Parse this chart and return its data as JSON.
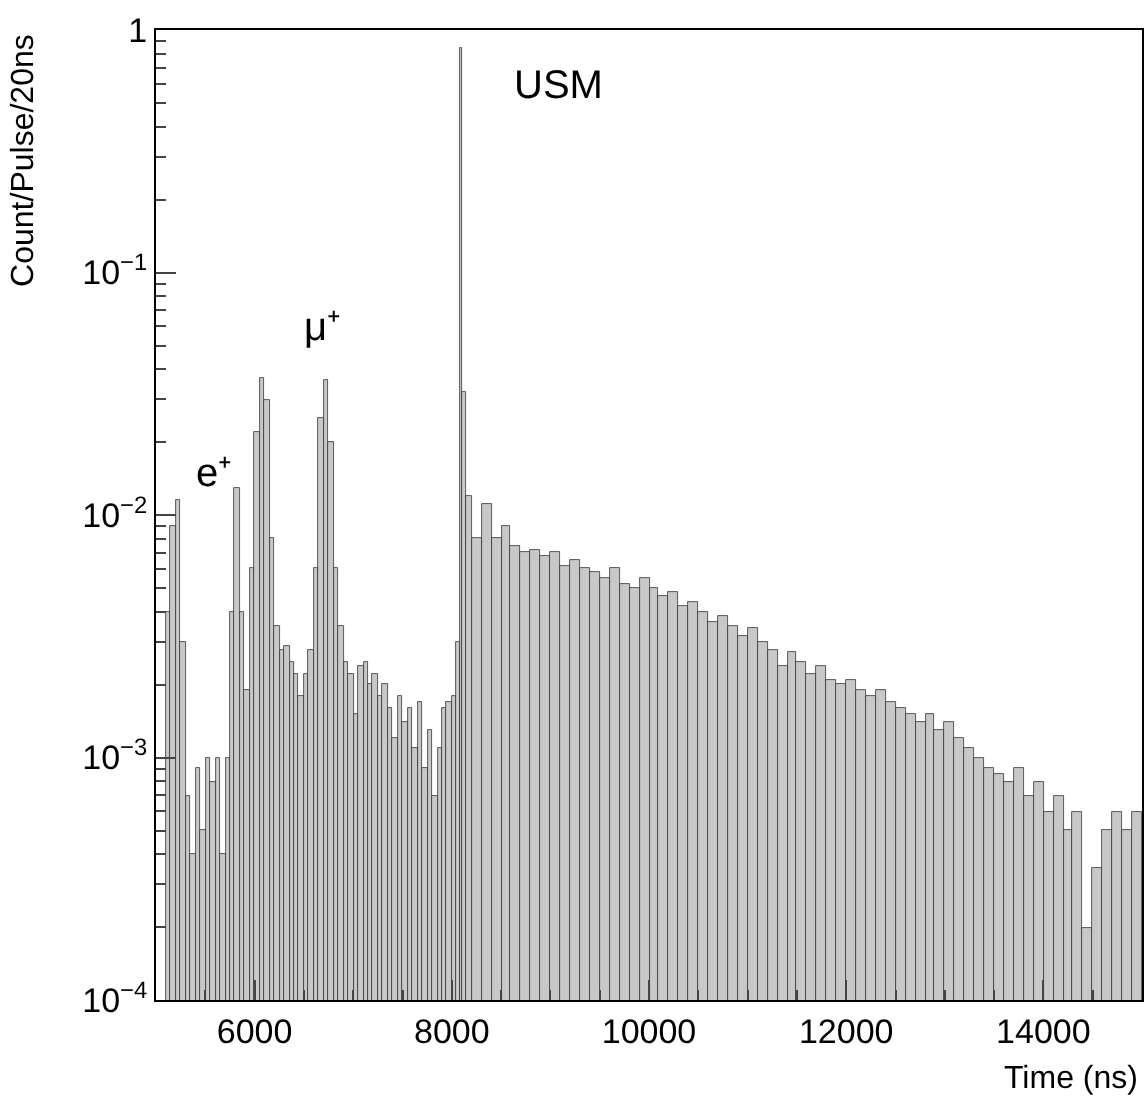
{
  "chart_data": {
    "type": "histogram",
    "xlabel": "Time (ns)",
    "ylabel": "Count/Pulse/20ns",
    "bins": [
      5100,
      5150,
      5200,
      5250,
      5300,
      5350,
      5400,
      5450,
      5500,
      5550,
      5600,
      5650,
      5700,
      5750,
      5800,
      5850,
      5900,
      5950,
      6000,
      6050,
      6100,
      6150,
      6200,
      6250,
      6300,
      6350,
      6400,
      6450,
      6500,
      6550,
      6600,
      6650,
      6700,
      6750,
      6800,
      6850,
      6900,
      6950,
      7000,
      7050,
      7100,
      7150,
      7200,
      7250,
      7300,
      7350,
      7400,
      7450,
      7500,
      7550,
      7600,
      7650,
      7700,
      7750,
      7800,
      7850,
      7900,
      7950,
      8000,
      8050,
      8080,
      8100,
      8150,
      8200,
      8300,
      8400,
      8500,
      8600,
      8700,
      8800,
      8900,
      9000,
      9100,
      9200,
      9300,
      9400,
      9500,
      9600,
      9700,
      9800,
      9900,
      10000,
      10100,
      10200,
      10300,
      10400,
      10500,
      10600,
      10700,
      10800,
      10900,
      11000,
      11100,
      11200,
      11300,
      11400,
      11500,
      11600,
      11700,
      11800,
      11900,
      12000,
      12100,
      12200,
      12300,
      12400,
      12500,
      12600,
      12700,
      12800,
      12900,
      13000,
      13100,
      13200,
      13300,
      13400,
      13500,
      13600,
      13700,
      13800,
      13900,
      14000,
      14100,
      14200,
      14300,
      14400,
      14500,
      14600,
      14700,
      14800,
      14900,
      15000
    ],
    "values": [
      0.004,
      0.009,
      0.0115,
      0.003,
      0.0007,
      0.0004,
      0.0009,
      0.0005,
      0.001,
      0.0008,
      0.001,
      0.0004,
      0.001,
      0.004,
      0.013,
      0.004,
      0.0019,
      0.006,
      0.022,
      0.037,
      0.03,
      0.008,
      0.0035,
      0.0028,
      0.0029,
      0.0025,
      0.0022,
      0.0018,
      0.0022,
      0.0028,
      0.006,
      0.025,
      0.036,
      0.02,
      0.006,
      0.0035,
      0.0025,
      0.0022,
      0.0015,
      0.0024,
      0.0025,
      0.002,
      0.0022,
      0.0018,
      0.002,
      0.0016,
      0.0012,
      0.0018,
      0.0014,
      0.0016,
      0.0011,
      0.0017,
      0.0009,
      0.0013,
      0.0007,
      0.0011,
      0.0016,
      0.0017,
      0.0018,
      0.003,
      0.84,
      0.032,
      0.012,
      0.008,
      0.011,
      0.008,
      0.009,
      0.0075,
      0.007,
      0.0072,
      0.0068,
      0.007,
      0.0062,
      0.0065,
      0.006,
      0.0058,
      0.0055,
      0.006,
      0.0052,
      0.005,
      0.0055,
      0.005,
      0.0046,
      0.0048,
      0.0042,
      0.0044,
      0.004,
      0.0036,
      0.0038,
      0.0035,
      0.0032,
      0.0034,
      0.003,
      0.0028,
      0.0024,
      0.0027,
      0.0025,
      0.0022,
      0.0024,
      0.0021,
      0.002,
      0.0021,
      0.0019,
      0.0018,
      0.0019,
      0.0017,
      0.0016,
      0.0015,
      0.0014,
      0.0015,
      0.0013,
      0.0014,
      0.0012,
      0.0011,
      0.001,
      0.0009,
      0.00085,
      0.0008,
      0.0009,
      0.0007,
      0.0008,
      0.0006,
      0.0007,
      0.0005,
      0.0006,
      0.0002,
      0.00035,
      0.0005,
      0.0006,
      0.0005,
      0.0006
    ],
    "color": "#c8c8c8",
    "log": "y",
    "xlim": [
      5000,
      15000
    ],
    "xticks": [
      6000,
      8000,
      10000,
      12000,
      14000
    ],
    "ylim": [
      0.0001,
      1
    ],
    "yticks": [
      {
        "value": 0.0001,
        "label": "10$^{−4}$"
      },
      {
        "value": 0.001,
        "label": "10$^{−3}$"
      },
      {
        "value": 0.01,
        "label": "10$^{−2}$"
      },
      {
        "value": 0.1,
        "label": "10$^{−1}$"
      },
      1
    ],
    "annotations": [
      "e⁺",
      "μ⁺",
      "USM"
    ]
  }
}
